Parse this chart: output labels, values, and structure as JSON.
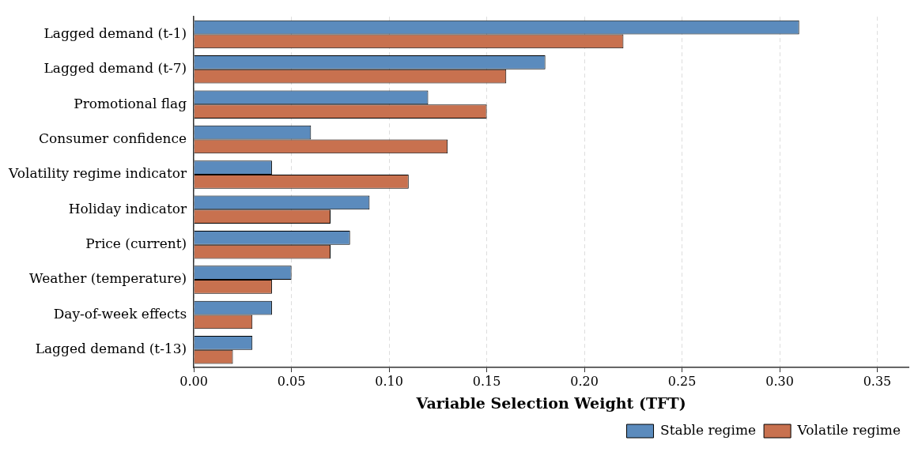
{
  "chart_data": {
    "type": "bar",
    "orientation": "horizontal",
    "xlabel": "Variable Selection Weight (TFT)",
    "categories": [
      "Lagged demand (t-1)",
      "Lagged demand (t-7)",
      "Promotional flag",
      "Consumer confidence",
      "Volatility regime indicator",
      "Holiday indicator",
      "Price (current)",
      "Weather (temperature)",
      "Day-of-week effects",
      "Lagged demand (t-13)"
    ],
    "series": [
      {
        "name": "Stable regime",
        "color": "#5b8bbd",
        "values": [
          0.31,
          0.18,
          0.12,
          0.06,
          0.04,
          0.09,
          0.08,
          0.05,
          0.04,
          0.03
        ]
      },
      {
        "name": "Volatile regime",
        "color": "#c8714f",
        "values": [
          0.22,
          0.16,
          0.15,
          0.13,
          0.11,
          0.07,
          0.07,
          0.04,
          0.03,
          0.02
        ]
      }
    ],
    "xlim": [
      0,
      0.366
    ],
    "xticks": [
      {
        "value": 0,
        "label": "0.00"
      },
      {
        "value": 0.05,
        "label": "0.05"
      },
      {
        "value": 0.1,
        "label": "0.10"
      },
      {
        "value": 0.15,
        "label": "0.15"
      },
      {
        "value": 0.2,
        "label": "0.20"
      },
      {
        "value": 0.25,
        "label": "0.25"
      },
      {
        "value": 0.3,
        "label": "0.30"
      },
      {
        "value": 0.35,
        "label": "0.35"
      }
    ],
    "grid": "x",
    "legend": "bottom right"
  }
}
